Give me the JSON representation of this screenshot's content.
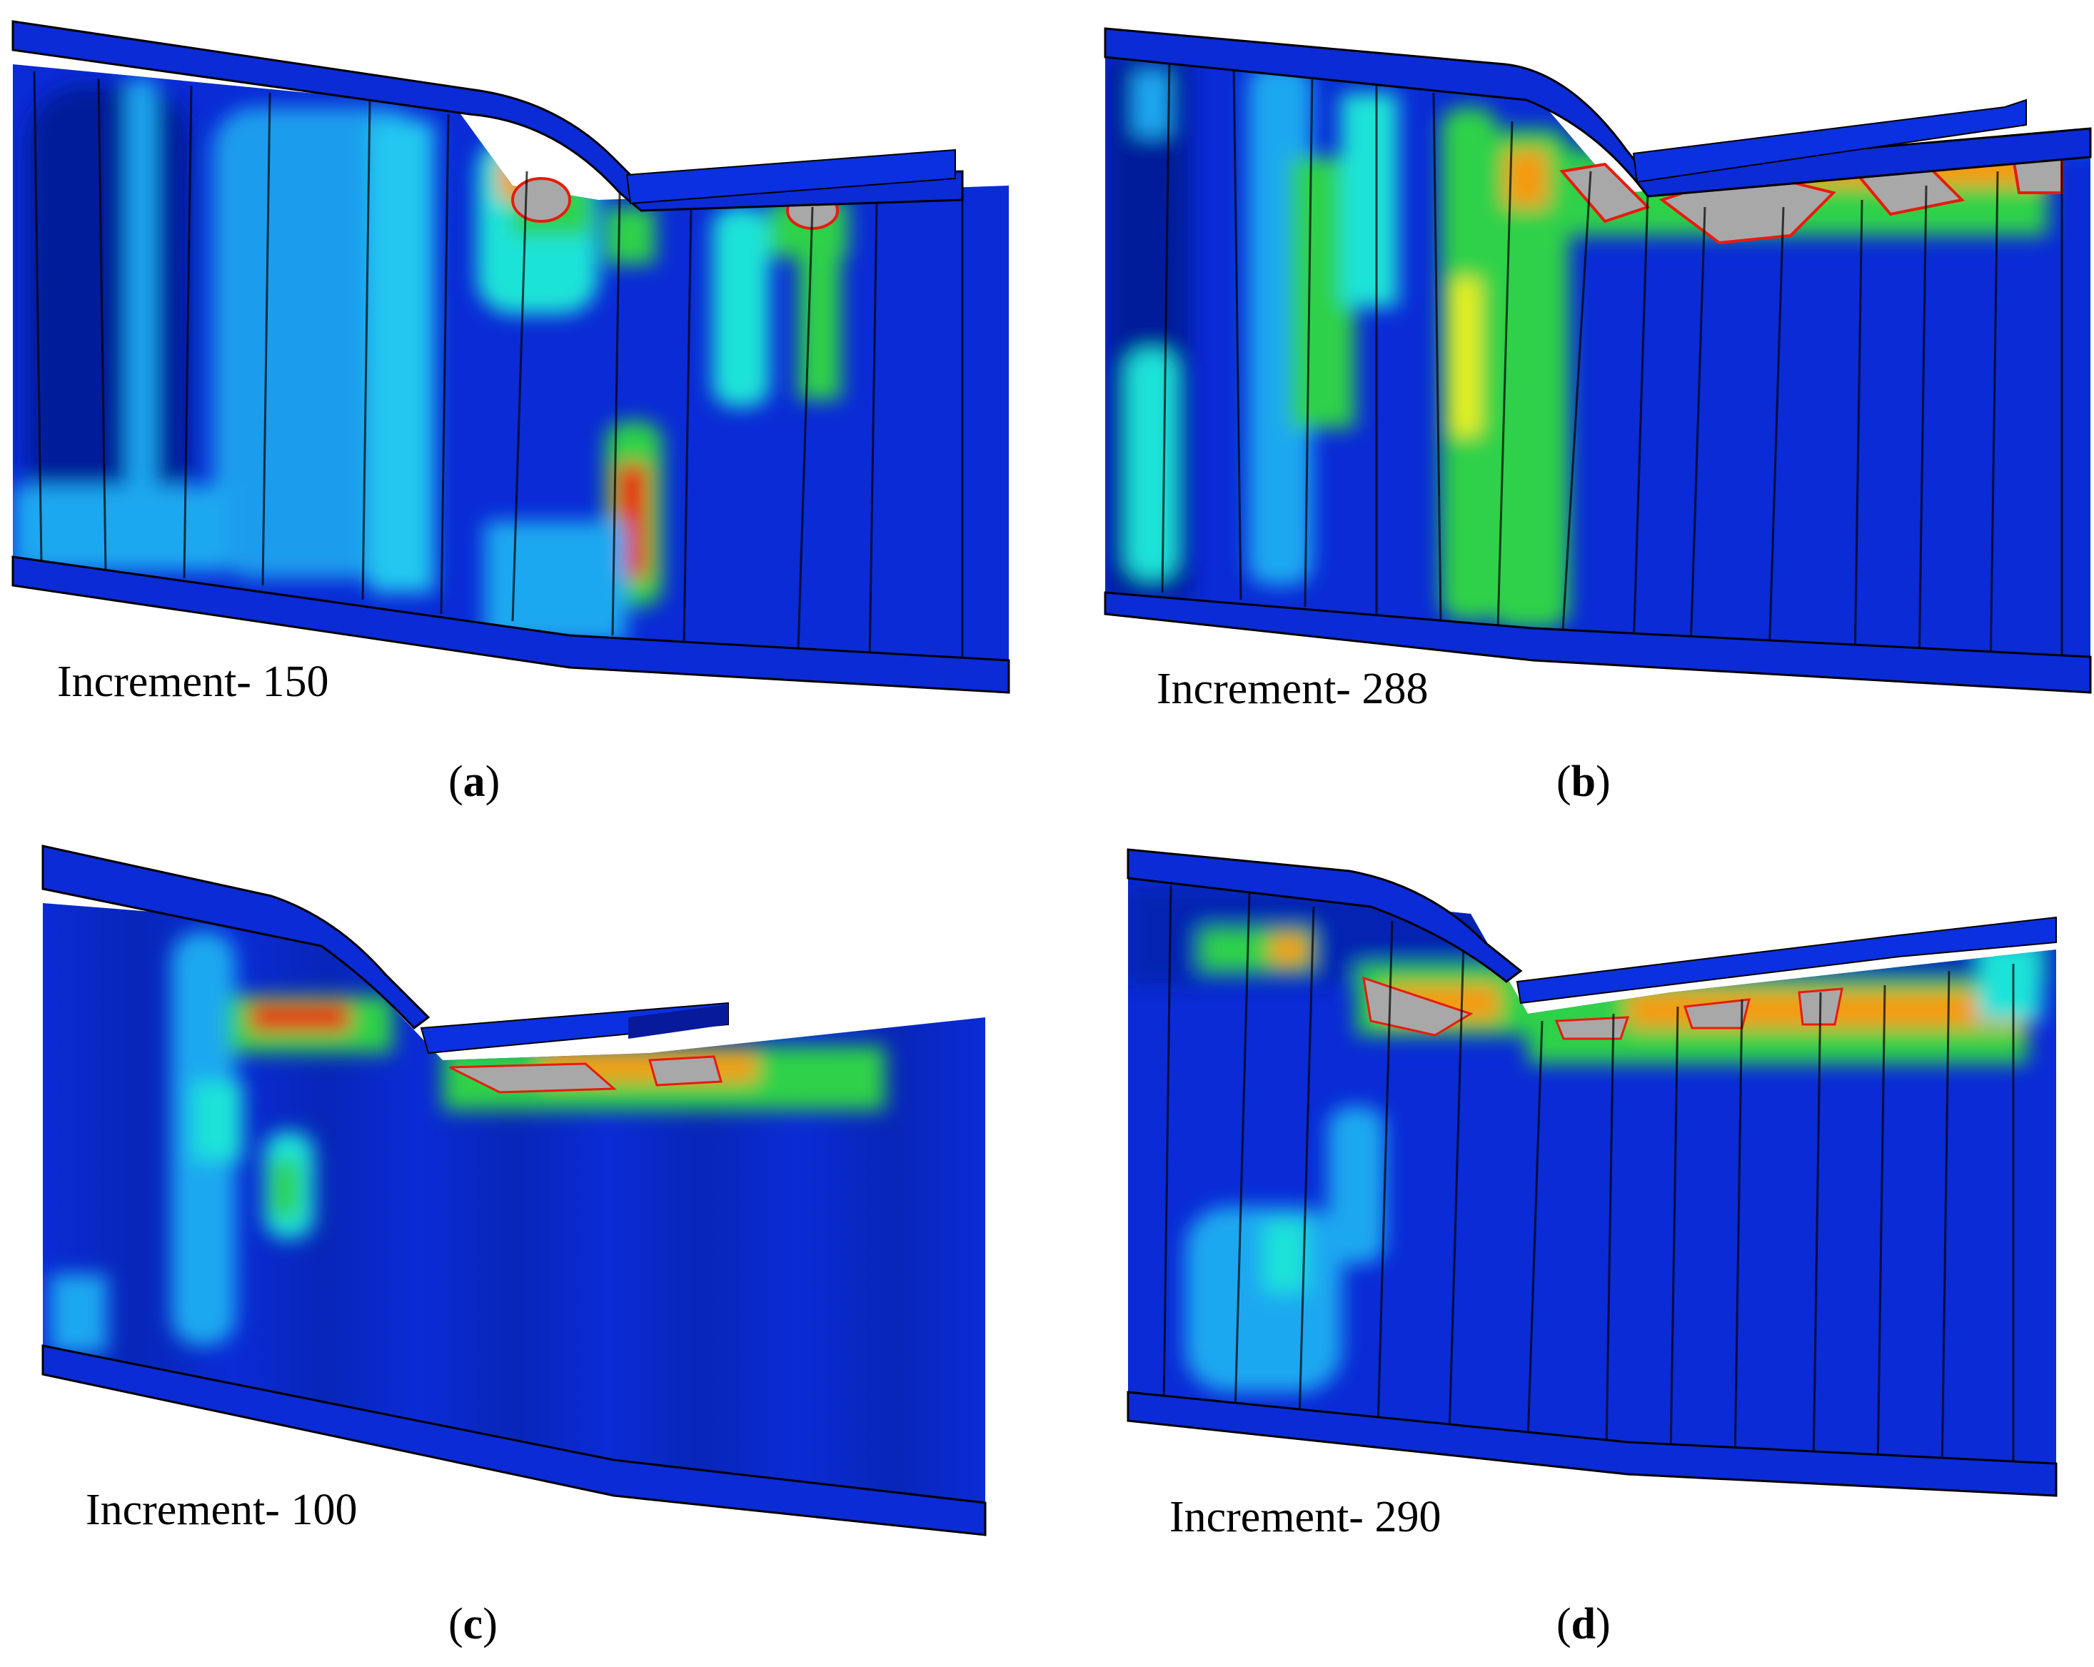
{
  "panels": [
    {
      "id": "a",
      "increment_label": "Increment- 150",
      "caption_letter": "a"
    },
    {
      "id": "b",
      "increment_label": "Increment- 288",
      "caption_letter": "b"
    },
    {
      "id": "c",
      "increment_label": "Increment- 100",
      "caption_letter": "c"
    },
    {
      "id": "d",
      "increment_label": "Increment- 290",
      "caption_letter": "d"
    }
  ],
  "colors": {
    "base_blue": "#0a2bd6",
    "dark_blue": "#061a9a",
    "light_blue": "#1ea8f0",
    "cyan": "#1fe3d8",
    "green": "#2fd14a",
    "yellow": "#e9f01c",
    "orange": "#f79a10",
    "red": "#e81b0c",
    "grey": "#a8a8a8"
  }
}
